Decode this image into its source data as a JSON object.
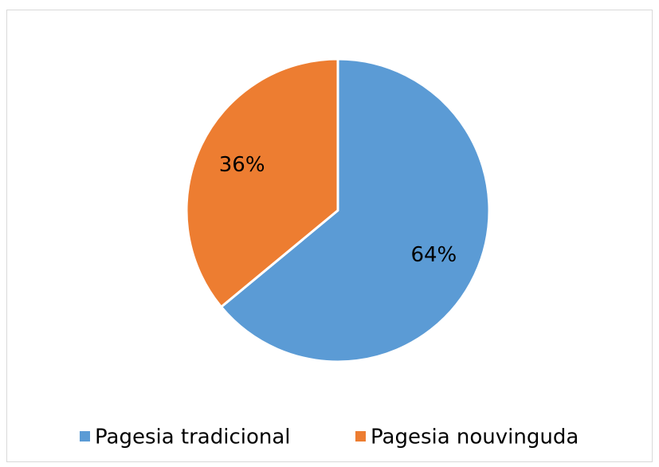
{
  "chart_data": {
    "type": "pie",
    "categories": [
      "Pagesia tradicional",
      "Pagesia nouvinguda"
    ],
    "values": [
      64,
      36
    ],
    "value_labels": [
      "64%",
      "36%"
    ],
    "colors": [
      "#5b9bd5",
      "#ed7d31"
    ],
    "legend": "bottom"
  }
}
